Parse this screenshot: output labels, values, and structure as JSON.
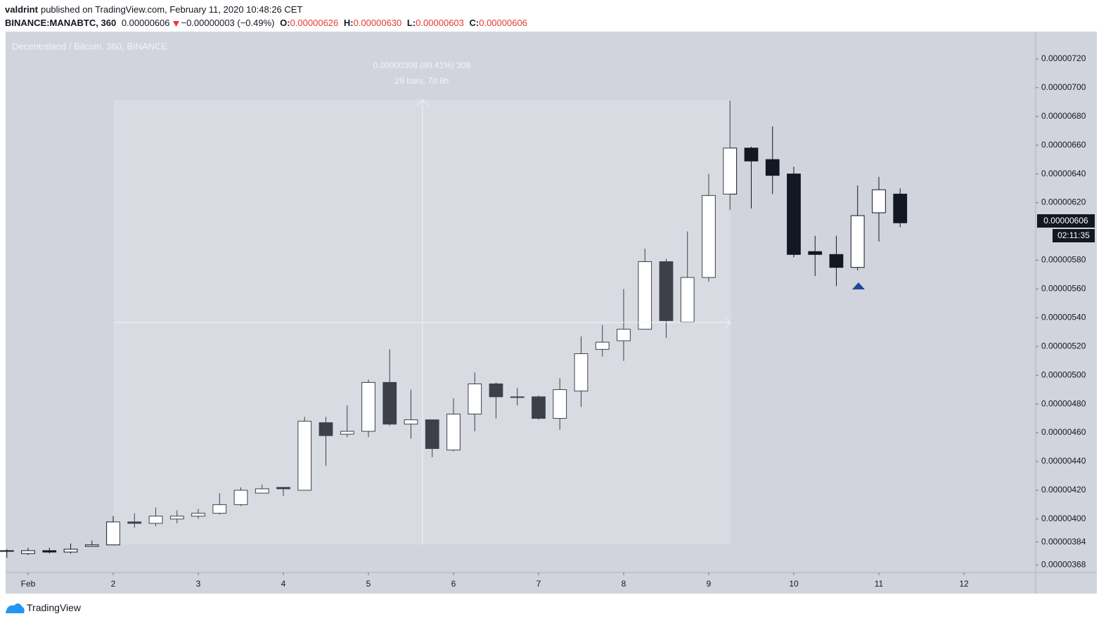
{
  "header": {
    "author": "valdrint",
    "published": "published on TradingView.com, February 11, 2020 10:48:26 CET",
    "symbol": "BINANCE:MANABTC, 360",
    "last": "0.00000606",
    "change": "−0.00000003 (−0.49%)",
    "ohlc": [
      {
        "label": "O:",
        "value": "0.00000626"
      },
      {
        "label": "H:",
        "value": "0.00000630"
      },
      {
        "label": "L:",
        "value": "0.00000603"
      },
      {
        "label": "C:",
        "value": "0.00000606"
      }
    ]
  },
  "chart_data": {
    "type": "candlestick",
    "title": "Decentraland / Bitcoin, 360, BINANCE",
    "measure_label": "0.00000308 (80.41%) 308",
    "measure_bars": "29 bars, 7d 6h",
    "price_label": "0.00000606",
    "countdown": "02:11:35",
    "up_color": "#ffffff",
    "down_color": "#131722",
    "grid": false,
    "x": [
      0.75,
      1,
      1.25,
      1.5,
      1.75,
      2,
      2.25,
      2.5,
      2.75,
      3,
      3.25,
      3.5,
      3.75,
      4,
      4.25,
      4.5,
      4.75,
      5,
      5.25,
      5.5,
      5.75,
      6,
      6.25,
      6.5,
      6.75,
      7,
      7.25,
      7.5,
      7.75,
      8,
      8.25,
      8.5,
      8.75,
      9,
      9.25,
      9.5,
      9.75,
      10,
      10.25,
      10.5,
      10.75,
      11,
      11.25
    ],
    "open": [
      3.78e-06,
      3.76e-06,
      3.78e-06,
      3.77e-06,
      3.81e-06,
      3.82e-06,
      3.98e-06,
      3.97e-06,
      4e-06,
      4.02e-06,
      4.04e-06,
      4.1e-06,
      4.18e-06,
      4.22e-06,
      4.2e-06,
      4.67e-06,
      4.59e-06,
      4.61e-06,
      4.95e-06,
      4.66e-06,
      4.69e-06,
      4.48e-06,
      4.73e-06,
      4.94e-06,
      4.85e-06,
      4.85e-06,
      4.7e-06,
      4.89e-06,
      5.18e-06,
      5.24e-06,
      5.32e-06,
      5.79e-06,
      5.37e-06,
      5.68e-06,
      6.26e-06,
      6.58e-06,
      6.5e-06,
      6.4e-06,
      5.86e-06,
      5.84e-06,
      5.75e-06,
      6.13e-06,
      6.26e-06
    ],
    "high": [
      3.79e-06,
      3.8e-06,
      3.8e-06,
      3.83e-06,
      3.85e-06,
      4.02e-06,
      4.04e-06,
      4.08e-06,
      4.06e-06,
      4.07e-06,
      4.18e-06,
      4.22e-06,
      4.24e-06,
      4.22e-06,
      4.71e-06,
      4.71e-06,
      4.79e-06,
      4.97e-06,
      5.18e-06,
      4.9e-06,
      4.69e-06,
      4.84e-06,
      5.02e-06,
      4.95e-06,
      4.91e-06,
      4.86e-06,
      4.98e-06,
      5.27e-06,
      5.35e-06,
      5.6e-06,
      5.88e-06,
      5.81e-06,
      6e-06,
      6.4e-06,
      6.91e-06,
      6.59e-06,
      6.73e-06,
      6.45e-06,
      5.97e-06,
      5.97e-06,
      6.32e-06,
      6.38e-06,
      6.3e-06
    ],
    "low": [
      3.73e-06,
      3.75e-06,
      3.76e-06,
      3.76e-06,
      3.81e-06,
      3.82e-06,
      3.94e-06,
      3.95e-06,
      3.97e-06,
      4e-06,
      4.03e-06,
      4.09e-06,
      4.18e-06,
      4.16e-06,
      4.2e-06,
      4.37e-06,
      4.57e-06,
      4.57e-06,
      4.65e-06,
      4.56e-06,
      4.43e-06,
      4.47e-06,
      4.61e-06,
      4.7e-06,
      4.79e-06,
      4.69e-06,
      4.62e-06,
      4.78e-06,
      5.13e-06,
      5.1e-06,
      5.32e-06,
      5.26e-06,
      5.37e-06,
      5.65e-06,
      6.15e-06,
      6.16e-06,
      6.26e-06,
      5.82e-06,
      5.69e-06,
      5.62e-06,
      5.73e-06,
      5.93e-06,
      6.03e-06
    ],
    "close": [
      3.78e-06,
      3.78e-06,
      3.77e-06,
      3.79e-06,
      3.82e-06,
      3.98e-06,
      3.97e-06,
      4.02e-06,
      4.02e-06,
      4.04e-06,
      4.1e-06,
      4.2e-06,
      4.21e-06,
      4.21e-06,
      4.68e-06,
      4.58e-06,
      4.61e-06,
      4.95e-06,
      4.66e-06,
      4.69e-06,
      4.49e-06,
      4.73e-06,
      4.94e-06,
      4.85e-06,
      4.85e-06,
      4.7e-06,
      4.9e-06,
      5.15e-06,
      5.23e-06,
      5.32e-06,
      5.79e-06,
      5.38e-06,
      5.68e-06,
      6.25e-06,
      6.58e-06,
      6.49e-06,
      6.39e-06,
      5.84e-06,
      5.84e-06,
      5.75e-06,
      6.11e-06,
      6.29e-06,
      6.06e-06
    ],
    "xlim": [
      0.7355,
      12.843
    ],
    "xticks": [
      {
        "value": 1,
        "label": "Feb"
      },
      2,
      3,
      4,
      5,
      6,
      7,
      8,
      9,
      10,
      11,
      12
    ],
    "ylim": [
      3.628e-06,
      7.39e-06
    ],
    "yticks": [
      {
        "value": 7.2e-06,
        "label": "0.00000720"
      },
      {
        "value": 7e-06,
        "label": "0.00000700"
      },
      {
        "value": 6.8e-06,
        "label": "0.00000680"
      },
      {
        "value": 6.6e-06,
        "label": "0.00000660"
      },
      {
        "value": 6.4e-06,
        "label": "0.00000640"
      },
      {
        "value": 6.2e-06,
        "label": "0.00000620"
      },
      {
        "value": 5.8e-06,
        "label": "0.00000580"
      },
      {
        "value": 5.6e-06,
        "label": "0.00000560"
      },
      {
        "value": 5.4e-06,
        "label": "0.00000540"
      },
      {
        "value": 5.2e-06,
        "label": "0.00000520"
      },
      {
        "value": 5e-06,
        "label": "0.00000500"
      },
      {
        "value": 4.8e-06,
        "label": "0.00000480"
      },
      {
        "value": 4.6e-06,
        "label": "0.00000460"
      },
      {
        "value": 4.4e-06,
        "label": "0.00000440"
      },
      {
        "value": 4.2e-06,
        "label": "0.00000420"
      },
      {
        "value": 4e-06,
        "label": "0.00000400"
      },
      {
        "value": 3.84e-06,
        "label": "0.00000384"
      },
      {
        "value": 3.68e-06,
        "label": "0.00000368"
      }
    ]
  },
  "footer": {
    "brand": "TradingView"
  }
}
